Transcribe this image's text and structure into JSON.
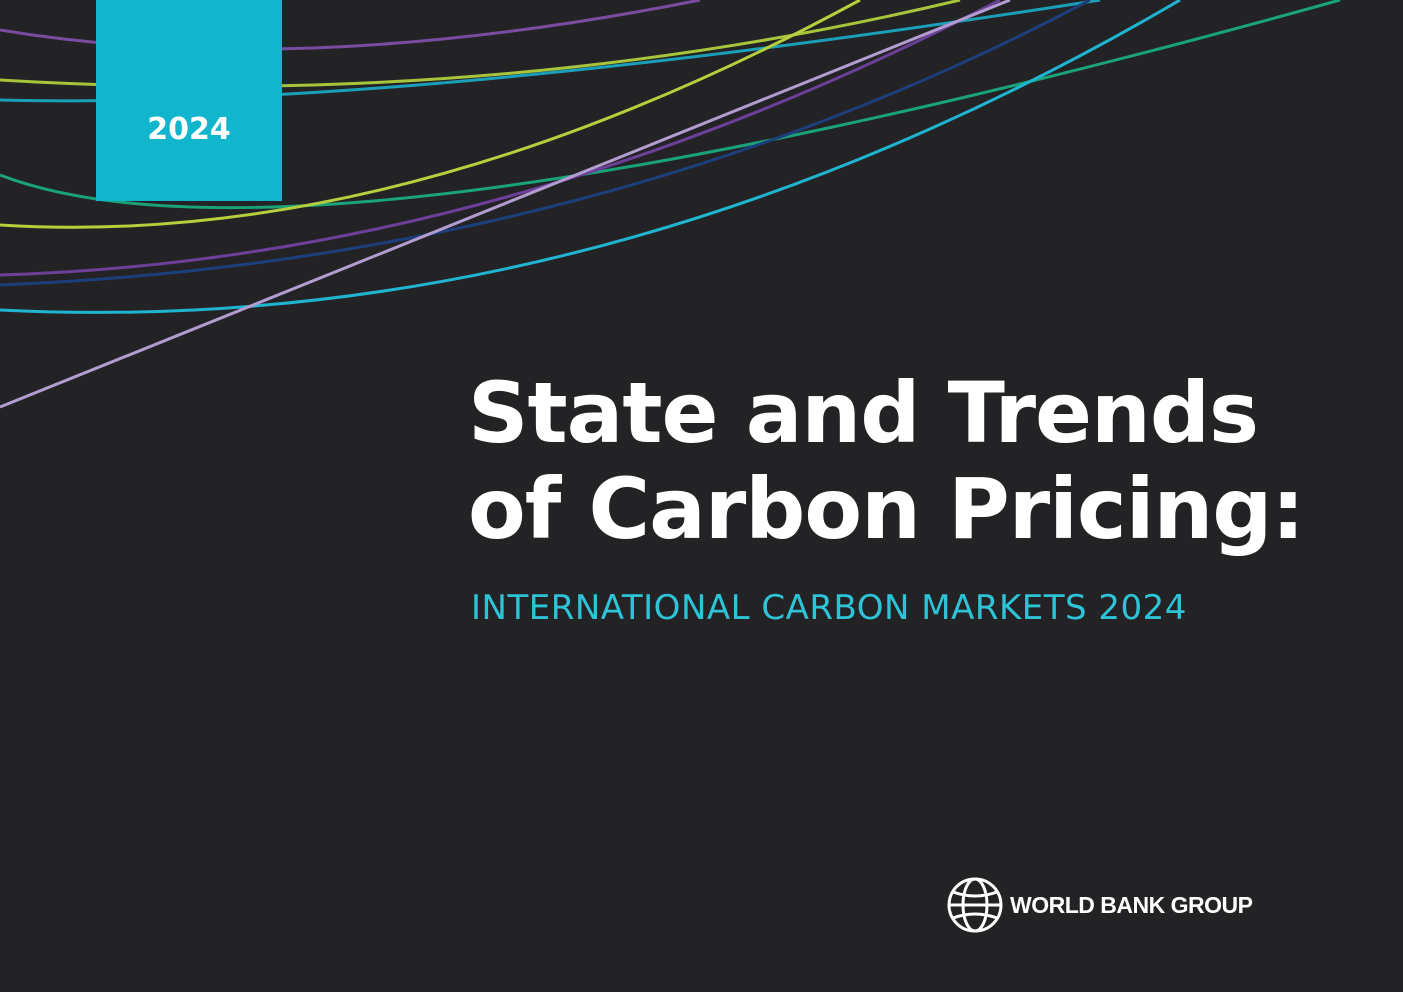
{
  "badge": {
    "year": "2024"
  },
  "title": {
    "line1": "State and Trends",
    "line2": "of Carbon Pricing:"
  },
  "subtitle": "INTERNATIONAL CARBON MARKETS 2024",
  "logo": {
    "text": "WORLD BANK GROUP"
  }
}
